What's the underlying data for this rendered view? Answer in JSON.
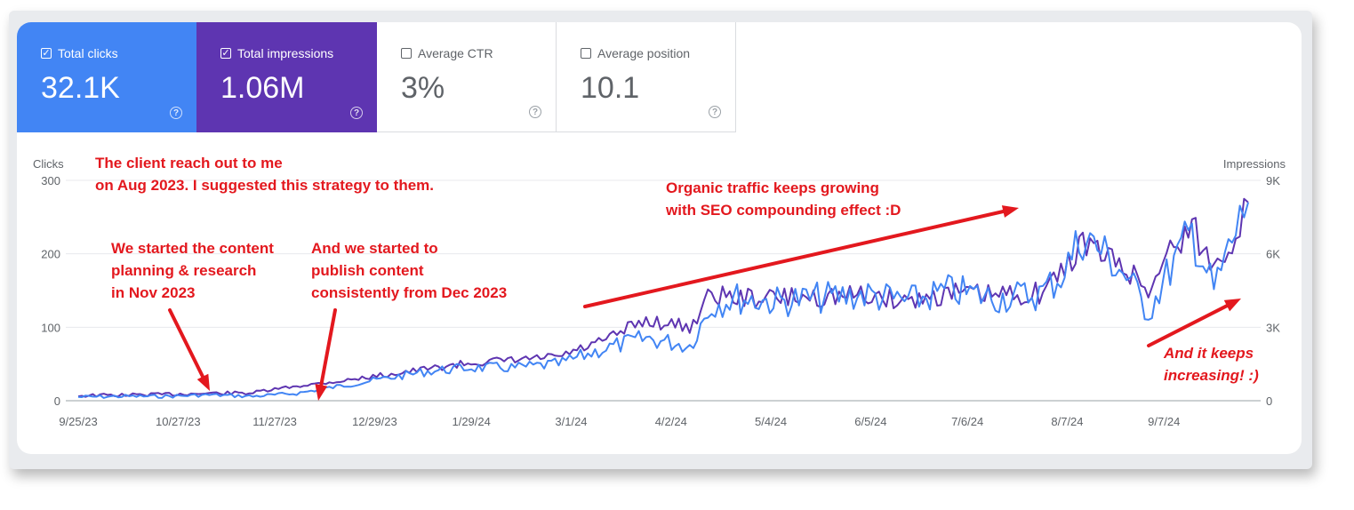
{
  "tiles": {
    "clicks": {
      "label": "Total clicks",
      "value": "32.1K",
      "checked": true
    },
    "impressions": {
      "label": "Total impressions",
      "value": "1.06M",
      "checked": true
    },
    "ctr": {
      "label": "Average CTR",
      "value": "3%",
      "checked": false
    },
    "position": {
      "label": "Average position",
      "value": "10.1",
      "checked": false
    }
  },
  "icons": {
    "help": "help-circle-icon",
    "checkbox": "checkbox-icon"
  },
  "colors": {
    "clicks": "#4285f4",
    "impressions": "#5e35b1",
    "annotation": "#e3181e"
  },
  "annotations": {
    "client": [
      "The client reach out to me",
      "on Aug 2023. I suggested this strategy to them."
    ],
    "planning": [
      "We started the content",
      "planning & research",
      "in Nov 2023"
    ],
    "publish": [
      "And we started to",
      "publish content",
      "consistently from Dec 2023"
    ],
    "organic": [
      "Organic traffic keeps growing",
      "with SEO compounding effect :D"
    ],
    "increasing": [
      "And it keeps",
      "increasing! :)"
    ]
  },
  "chart_data": {
    "type": "line",
    "x_ticks": [
      "9/25/23",
      "10/27/23",
      "11/27/23",
      "12/29/23",
      "1/29/24",
      "3/1/24",
      "4/2/24",
      "5/4/24",
      "6/5/24",
      "7/6/24",
      "8/7/24",
      "9/7/24"
    ],
    "y_left": {
      "label": "Clicks",
      "ticks": [
        "0",
        "100",
        "200",
        "300"
      ],
      "ylim": [
        0,
        300
      ]
    },
    "y_right": {
      "label": "Impressions",
      "ticks": [
        "0",
        "3K",
        "6K",
        "9K"
      ],
      "ylim": [
        0,
        9000
      ]
    },
    "grid": true,
    "x_range": [
      "9/25/23",
      "10/4/24"
    ],
    "series": [
      {
        "name": "Clicks",
        "axis": "left",
        "color": "#4285f4",
        "x": [
          "9/25/23",
          "10/9/23",
          "10/23/23",
          "11/6/23",
          "11/20/23",
          "12/4/23",
          "12/18/23",
          "1/1/24",
          "1/15/24",
          "1/29/24",
          "2/12/24",
          "2/26/24",
          "3/11/24",
          "3/25/24",
          "4/8/24",
          "4/15/24",
          "4/22/24",
          "5/6/24",
          "5/20/24",
          "6/3/24",
          "6/17/24",
          "7/1/24",
          "7/15/24",
          "7/29/24",
          "8/5/24",
          "8/12/24",
          "8/19/24",
          "8/26/24",
          "9/2/24",
          "9/9/24",
          "9/16/24",
          "9/23/24",
          "9/30/24",
          "10/4/24"
        ],
        "values": [
          5,
          6,
          6,
          8,
          6,
          10,
          20,
          30,
          40,
          45,
          45,
          50,
          70,
          85,
          75,
          130,
          140,
          135,
          140,
          145,
          135,
          150,
          140,
          145,
          170,
          225,
          200,
          170,
          120,
          180,
          230,
          150,
          230,
          270
        ]
      },
      {
        "name": "Impressions",
        "axis": "right",
        "color": "#5e35b1",
        "x": [
          "9/25/23",
          "10/9/23",
          "10/23/23",
          "11/6/23",
          "11/20/23",
          "12/4/23",
          "12/18/23",
          "1/1/24",
          "1/15/24",
          "1/29/24",
          "2/12/24",
          "2/26/24",
          "3/11/24",
          "3/25/24",
          "4/8/24",
          "4/15/24",
          "4/22/24",
          "5/6/24",
          "5/20/24",
          "6/3/24",
          "6/17/24",
          "7/1/24",
          "7/15/24",
          "7/29/24",
          "8/5/24",
          "8/12/24",
          "8/19/24",
          "8/26/24",
          "9/2/24",
          "9/9/24",
          "9/16/24",
          "9/23/24",
          "9/30/24",
          "10/4/24"
        ],
        "values": [
          210,
          230,
          260,
          300,
          320,
          600,
          800,
          1050,
          1300,
          1550,
          1650,
          1800,
          2400,
          3300,
          3000,
          4400,
          4200,
          4200,
          4250,
          4300,
          4100,
          4400,
          4300,
          4400,
          5200,
          6500,
          5900,
          5400,
          4500,
          6200,
          7100,
          5400,
          6900,
          8100
        ]
      }
    ]
  }
}
